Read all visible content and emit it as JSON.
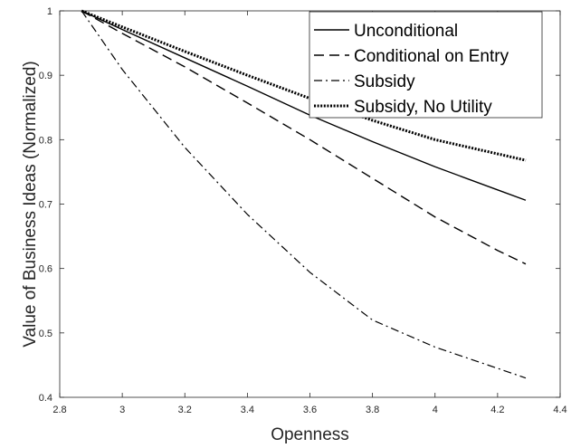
{
  "chart_data": {
    "type": "line",
    "title": "",
    "xlabel": "Openness",
    "ylabel": "Value of Business Ideas (Normalized)",
    "xlim": [
      2.8,
      4.4
    ],
    "ylim": [
      0.4,
      1.0
    ],
    "xticks": [
      2.8,
      3,
      3.2,
      3.4,
      3.6,
      3.8,
      4,
      4.2,
      4.4
    ],
    "xtick_labels": [
      "2.8",
      "3",
      "3.2",
      "3.4",
      "3.6",
      "3.8",
      "4",
      "4.2",
      "4.4"
    ],
    "yticks": [
      0.4,
      0.5,
      0.6,
      0.7,
      0.8,
      0.9,
      1.0
    ],
    "ytick_labels": [
      "0.4",
      "0.5",
      "0.6",
      "0.7",
      "0.8",
      "0.9",
      "1"
    ],
    "grid": false,
    "legend_position": "top-right",
    "series": [
      {
        "name": "Unconditional",
        "style": "solid",
        "color": "#000000",
        "x": [
          2.87,
          3.0,
          3.2,
          3.4,
          3.6,
          3.8,
          4.0,
          4.2,
          4.29
        ],
        "y": [
          1.0,
          0.971,
          0.927,
          0.883,
          0.838,
          0.797,
          0.758,
          0.722,
          0.706
        ]
      },
      {
        "name": "Conditional on Entry",
        "style": "dashed",
        "color": "#000000",
        "x": [
          2.87,
          3.0,
          3.2,
          3.4,
          3.6,
          3.8,
          4.0,
          4.2,
          4.29
        ],
        "y": [
          1.0,
          0.965,
          0.913,
          0.857,
          0.8,
          0.74,
          0.68,
          0.628,
          0.607
        ]
      },
      {
        "name": "Subsidy",
        "style": "dashdot",
        "color": "#000000",
        "x": [
          2.87,
          3.0,
          3.2,
          3.4,
          3.6,
          3.8,
          4.0,
          4.2,
          4.29
        ],
        "y": [
          1.0,
          0.909,
          0.788,
          0.684,
          0.594,
          0.52,
          0.478,
          0.445,
          0.43
        ]
      },
      {
        "name": "Subsidy, No Utility",
        "style": "dotted",
        "color": "#000000",
        "x": [
          2.87,
          3.0,
          3.2,
          3.4,
          3.6,
          3.8,
          4.0,
          4.2,
          4.29
        ],
        "y": [
          1.0,
          0.975,
          0.937,
          0.9,
          0.864,
          0.83,
          0.8,
          0.778,
          0.768
        ]
      }
    ]
  }
}
